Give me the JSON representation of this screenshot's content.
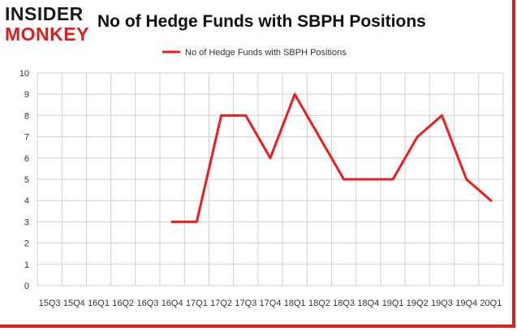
{
  "header": {
    "logo_line1": "INSIDER",
    "logo_line2": "MONKEY",
    "title": "No of Hedge Funds with SBPH Positions"
  },
  "colors": {
    "accent": "#d9201f",
    "line": "#ee1c1c",
    "grid": "#d0d0d0",
    "axis_text": "#333333"
  },
  "chart_data": {
    "type": "line",
    "title": "No of Hedge Funds with SBPH Positions",
    "xlabel": "",
    "ylabel": "",
    "ylim": [
      0,
      10
    ],
    "yticks": [
      0,
      1,
      2,
      3,
      4,
      5,
      6,
      7,
      8,
      9,
      10
    ],
    "grid": true,
    "legend_position": "top-center",
    "categories": [
      "2015Q3",
      "2015Q4",
      "2016Q1",
      "2016Q2",
      "2016Q3",
      "2016Q4",
      "2017Q1",
      "2017Q2",
      "2017Q3",
      "2017Q4",
      "2018Q1",
      "2018Q2",
      "2018Q3",
      "2018Q4",
      "2019Q1",
      "2019Q2",
      "2019Q3",
      "2019Q4",
      "2020Q1"
    ],
    "tick_labels": [
      "15Q3",
      "15Q4",
      "16Q1",
      "16Q2",
      "16Q3",
      "16Q4",
      "17Q1",
      "17Q2",
      "17Q3",
      "17Q4",
      "18Q1",
      "18Q2",
      "18Q3",
      "18Q4",
      "19Q1",
      "19Q2",
      "19Q3",
      "19Q4",
      "20Q1"
    ],
    "series": [
      {
        "name": "No of Hedge Funds with SBPH Positions",
        "values": [
          null,
          null,
          null,
          null,
          null,
          3,
          3,
          8,
          8,
          6,
          9,
          7,
          5,
          5,
          5,
          7,
          8,
          5,
          4
        ]
      }
    ]
  }
}
